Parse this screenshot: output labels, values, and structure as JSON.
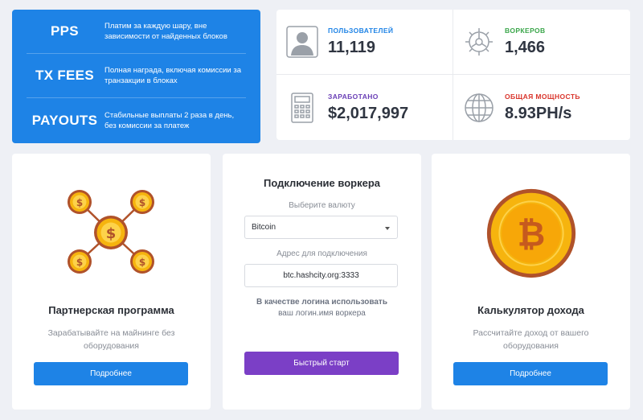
{
  "features": [
    {
      "title": "PPS",
      "desc": "Платим за каждую шару, вне зависимости от найденных блоков"
    },
    {
      "title": "TX FEES",
      "desc": "Полная награда, включая комиссии за транзакции в блоках"
    },
    {
      "title": "PAYOUTS",
      "desc": "Стабильные выплаты 2 раза в день, без комиссии за платеж"
    }
  ],
  "stats": {
    "users": {
      "label": "ПОЛЬЗОВАТЕЛЕЙ",
      "value": "11,119",
      "color": "#1e83e6",
      "icon": "user-icon"
    },
    "workers": {
      "label": "ВОРКЕРОВ",
      "value": "1,466",
      "color": "#3aa64a",
      "icon": "gear-icon"
    },
    "earned": {
      "label": "ЗАРАБОТАНО",
      "value": "$2,017,997",
      "color": "#6a3fb6",
      "icon": "calculator-icon"
    },
    "hashrate": {
      "label": "ОБЩАЯ МОЩНОСТЬ",
      "value": "8.93PH/s",
      "color": "#d9342b",
      "icon": "globe-icon"
    }
  },
  "partner": {
    "title": "Партнерская программа",
    "text": "Зарабатывайте на майнинге без оборудования",
    "button": "Подробнее",
    "icon": "coins-network-icon"
  },
  "connect": {
    "title": "Подключение воркера",
    "currency_label": "Выберите валюту",
    "currency_value": "Bitcoin",
    "address_label": "Адрес для подключения",
    "address_value": "btc.hashcity.org:3333",
    "hint_bold": "В качестве логина использовать",
    "hint": "ваш логин.имя воркера",
    "button": "Быстрый старт"
  },
  "calculator": {
    "title": "Калькулятор дохода",
    "text": "Рассчитайте доход от вашего оборудования",
    "button": "Подробнее",
    "icon": "bitcoin-coin-icon"
  }
}
